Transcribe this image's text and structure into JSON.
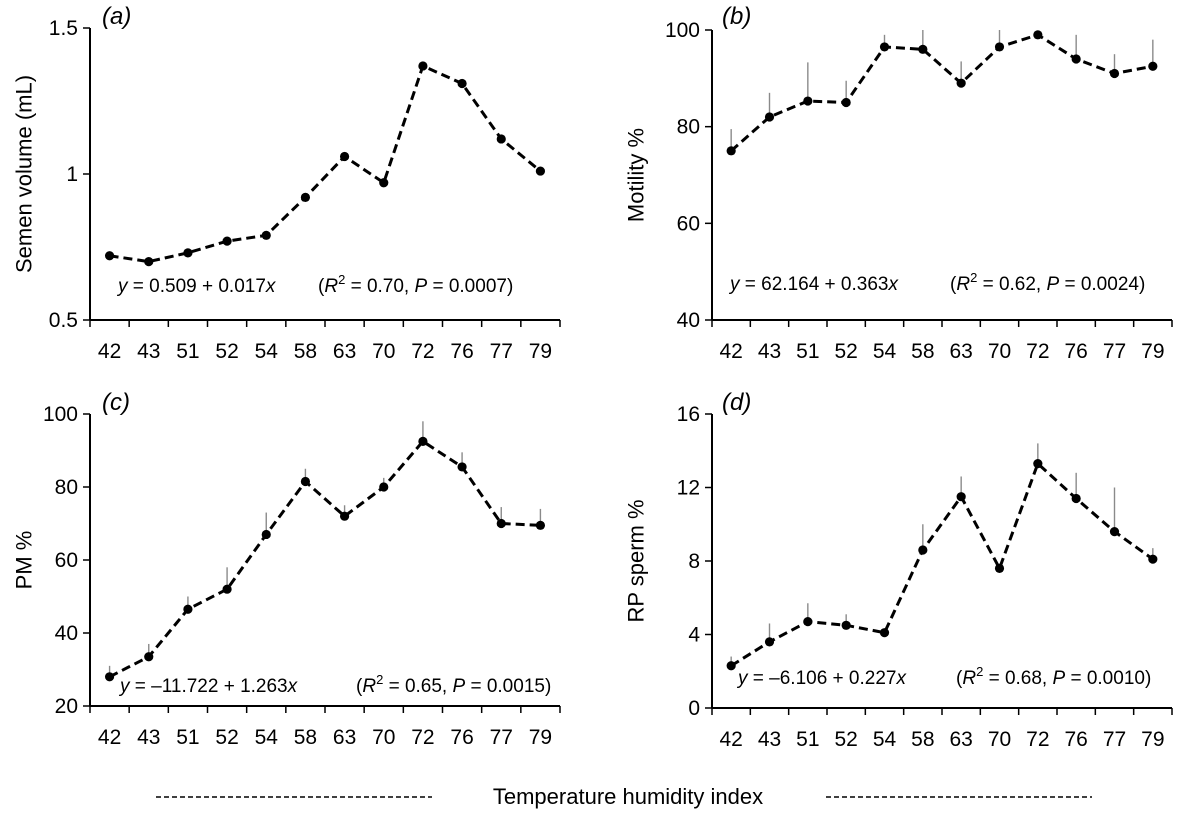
{
  "x_title": "Temperature humidity index",
  "chart_data": [
    {
      "type": "line",
      "panel": "(a)",
      "ylabel": "Semen volume (mL)",
      "ylim": [
        0.5,
        1.5
      ],
      "yticks": [
        0.5,
        1,
        1.5
      ],
      "categories": [
        "42",
        "43",
        "51",
        "52",
        "54",
        "58",
        "63",
        "70",
        "72",
        "76",
        "77",
        "79"
      ],
      "values": [
        0.72,
        0.7,
        0.73,
        0.77,
        0.79,
        0.92,
        1.06,
        0.97,
        1.37,
        1.31,
        1.12,
        1.01
      ],
      "error": [
        0,
        0,
        0,
        0,
        0,
        0,
        0,
        0,
        0,
        0,
        0,
        0
      ],
      "equation": {
        "y": "y",
        "fit": " = 0.509 + 0.017",
        "x": "x",
        "r": "R",
        "sup": "2",
        "r_val": " = 0.70, ",
        "p": "P",
        "p_val": " = 0.0007)",
        "open": "("
      }
    },
    {
      "type": "line",
      "panel": "(b)",
      "ylabel": "Motility %",
      "ylim": [
        40,
        100
      ],
      "yticks": [
        40,
        60,
        80,
        100
      ],
      "categories": [
        "42",
        "43",
        "51",
        "52",
        "54",
        "58",
        "63",
        "70",
        "72",
        "76",
        "77",
        "79"
      ],
      "values": [
        75,
        82,
        85.3,
        85,
        96.5,
        96,
        89,
        96.5,
        99,
        94,
        91,
        92.5
      ],
      "error": [
        4.5,
        5,
        8,
        4.5,
        2.5,
        4,
        4.5,
        3.5,
        0,
        5,
        4,
        5.5
      ],
      "equation": {
        "y": "y",
        "fit": " = 62.164 + 0.363",
        "x": "x",
        "r": "R",
        "sup": "2",
        "r_val": " = 0.62, ",
        "p": "P",
        "p_val": " = 0.0024)",
        "open": "("
      }
    },
    {
      "type": "line",
      "panel": "(c)",
      "ylabel": "PM %",
      "ylim": [
        20,
        100
      ],
      "yticks": [
        20,
        40,
        60,
        80,
        100
      ],
      "categories": [
        "42",
        "43",
        "51",
        "52",
        "54",
        "58",
        "63",
        "70",
        "72",
        "76",
        "77",
        "79"
      ],
      "values": [
        28,
        33.5,
        46.5,
        52,
        67,
        81.5,
        72,
        80,
        92.5,
        85.5,
        70,
        69.5
      ],
      "error": [
        3,
        3.5,
        3.5,
        6,
        6,
        3.5,
        3,
        2.5,
        5.5,
        4,
        4.5,
        4.5
      ],
      "equation": {
        "y": "y",
        "fit": " = –11.722 + 1.263",
        "x": "x",
        "r": "R",
        "sup": "2",
        "r_val": " = 0.65, ",
        "p": "P",
        "p_val": " = 0.0015)",
        "open": "("
      }
    },
    {
      "type": "line",
      "panel": "(d)",
      "ylabel": "RP sperm %",
      "ylim": [
        0,
        16
      ],
      "yticks": [
        0,
        4,
        8,
        12,
        16
      ],
      "categories": [
        "42",
        "43",
        "51",
        "52",
        "54",
        "58",
        "63",
        "70",
        "72",
        "76",
        "77",
        "79"
      ],
      "values": [
        2.3,
        3.6,
        4.7,
        4.5,
        4.1,
        8.6,
        11.5,
        7.6,
        13.3,
        11.4,
        9.6,
        8.1
      ],
      "error": [
        0.5,
        1.0,
        1.0,
        0.6,
        0,
        1.4,
        1.1,
        0,
        1.1,
        1.4,
        2.4,
        0.6
      ],
      "equation": {
        "y": "y",
        "fit": " = –6.106 + 0.227",
        "x": "x",
        "r": "R",
        "sup": "2",
        "r_val": " = 0.68, ",
        "p": "P",
        "p_val": " = 0.0010)",
        "open": "("
      }
    }
  ]
}
